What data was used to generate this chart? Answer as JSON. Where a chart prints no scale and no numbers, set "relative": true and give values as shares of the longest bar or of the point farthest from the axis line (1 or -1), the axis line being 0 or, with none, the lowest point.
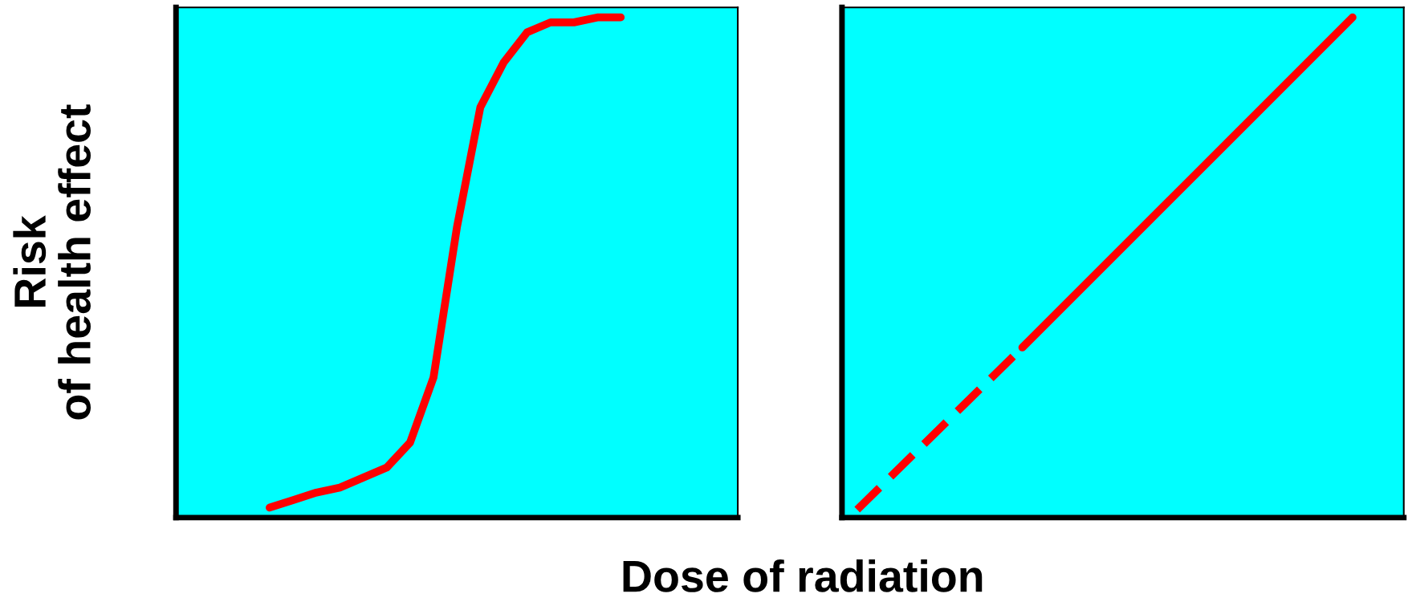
{
  "chart_data": [
    {
      "type": "line",
      "relative": true,
      "ylabel": "Risk\nof health effect",
      "xlabel": "Dose of radiation",
      "categories": [
        null,
        null,
        null,
        null,
        null,
        null,
        null,
        null,
        null,
        null,
        null,
        null,
        null,
        null,
        null,
        null,
        null,
        null,
        null,
        null,
        null,
        null,
        null,
        null,
        null
      ],
      "series": [
        {
          "color": "#ff0000",
          "line_style": "solid",
          "values": [
            null,
            null,
            null,
            null,
            0.02,
            0.035,
            0.05,
            0.06,
            0.08,
            0.1,
            0.15,
            0.28,
            0.58,
            0.82,
            0.91,
            0.97,
            0.99,
            0.99,
            1.0,
            1.0,
            null,
            null,
            null,
            null,
            null
          ]
        }
      ],
      "tick_labels": false
    },
    {
      "type": "line",
      "relative": true,
      "categories": [
        null,
        null,
        null,
        null
      ],
      "series": [
        {
          "color": "#ff0000",
          "line_style": "dashed",
          "values": [
            0.016,
            0.34,
            null,
            null
          ]
        },
        {
          "color": "#ff0000",
          "line_style": "solid",
          "values": [
            null,
            0.34,
            0.67,
            1.0
          ]
        }
      ],
      "tick_labels": false
    }
  ]
}
